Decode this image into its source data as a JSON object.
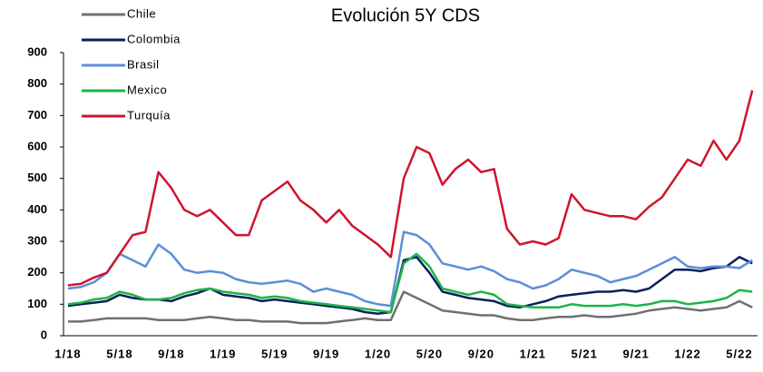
{
  "chart_data": {
    "type": "line",
    "title": "Evolución 5Y CDS",
    "categories": [
      "1/18",
      null,
      null,
      null,
      "5/18",
      null,
      null,
      null,
      "9/18",
      null,
      null,
      null,
      "1/19",
      null,
      null,
      null,
      "5/19",
      null,
      null,
      null,
      "9/19",
      null,
      null,
      null,
      "1/20",
      null,
      null,
      null,
      "5/20",
      null,
      null,
      null,
      "9/20",
      null,
      null,
      null,
      "1/21",
      null,
      null,
      null,
      "5/21",
      null,
      null,
      null,
      "9/21",
      null,
      null,
      null,
      "1/22",
      null,
      null,
      null,
      "5/22",
      null
    ],
    "ylim": [
      0,
      900
    ],
    "yticks": [
      0,
      100,
      200,
      300,
      400,
      500,
      600,
      700,
      800,
      900
    ],
    "grid": false,
    "legend": "upper-left",
    "series": [
      {
        "name": "Chile",
        "color": "#707070",
        "values": [
          45,
          45,
          50,
          55,
          55,
          55,
          55,
          50,
          50,
          50,
          55,
          60,
          55,
          50,
          50,
          45,
          45,
          45,
          40,
          40,
          40,
          45,
          50,
          55,
          50,
          50,
          140,
          120,
          100,
          80,
          75,
          70,
          65,
          65,
          55,
          50,
          50,
          55,
          60,
          60,
          65,
          60,
          60,
          65,
          70,
          80,
          85,
          90,
          85,
          80,
          85,
          90,
          110,
          90
        ]
      },
      {
        "name": "Colombia",
        "color": "#0a1f5c",
        "values": [
          95,
          100,
          105,
          110,
          130,
          120,
          115,
          115,
          110,
          125,
          135,
          150,
          130,
          125,
          120,
          110,
          115,
          110,
          105,
          100,
          95,
          90,
          85,
          75,
          70,
          75,
          240,
          250,
          200,
          140,
          130,
          120,
          115,
          110,
          95,
          90,
          100,
          110,
          125,
          130,
          135,
          140,
          140,
          145,
          140,
          150,
          180,
          210,
          210,
          205,
          215,
          220,
          250,
          230
        ]
      },
      {
        "name": "Brasil",
        "color": "#5b8fd6",
        "values": [
          150,
          155,
          170,
          200,
          260,
          240,
          220,
          290,
          260,
          210,
          200,
          205,
          200,
          180,
          170,
          165,
          170,
          175,
          165,
          140,
          150,
          140,
          130,
          110,
          100,
          95,
          330,
          320,
          290,
          230,
          220,
          210,
          220,
          205,
          180,
          170,
          150,
          160,
          180,
          210,
          200,
          190,
          170,
          180,
          190,
          210,
          230,
          250,
          220,
          215,
          220,
          220,
          215,
          240
        ]
      },
      {
        "name": "Mexico",
        "color": "#1db34a",
        "values": [
          100,
          105,
          115,
          120,
          140,
          130,
          115,
          115,
          120,
          135,
          145,
          150,
          140,
          135,
          130,
          120,
          125,
          120,
          110,
          105,
          100,
          95,
          90,
          85,
          80,
          75,
          230,
          260,
          220,
          150,
          140,
          130,
          140,
          130,
          100,
          95,
          90,
          90,
          90,
          100,
          95,
          95,
          95,
          100,
          95,
          100,
          110,
          110,
          100,
          105,
          110,
          120,
          145,
          140
        ]
      },
      {
        "name": "Turquía",
        "color": "#d0142c",
        "values": [
          160,
          165,
          185,
          200,
          260,
          320,
          330,
          520,
          470,
          400,
          380,
          400,
          360,
          320,
          320,
          430,
          460,
          490,
          430,
          400,
          360,
          400,
          350,
          320,
          290,
          250,
          500,
          600,
          580,
          480,
          530,
          560,
          520,
          530,
          340,
          290,
          300,
          290,
          310,
          450,
          400,
          390,
          380,
          380,
          370,
          410,
          440,
          500,
          560,
          540,
          620,
          560,
          620,
          780
        ]
      }
    ]
  }
}
